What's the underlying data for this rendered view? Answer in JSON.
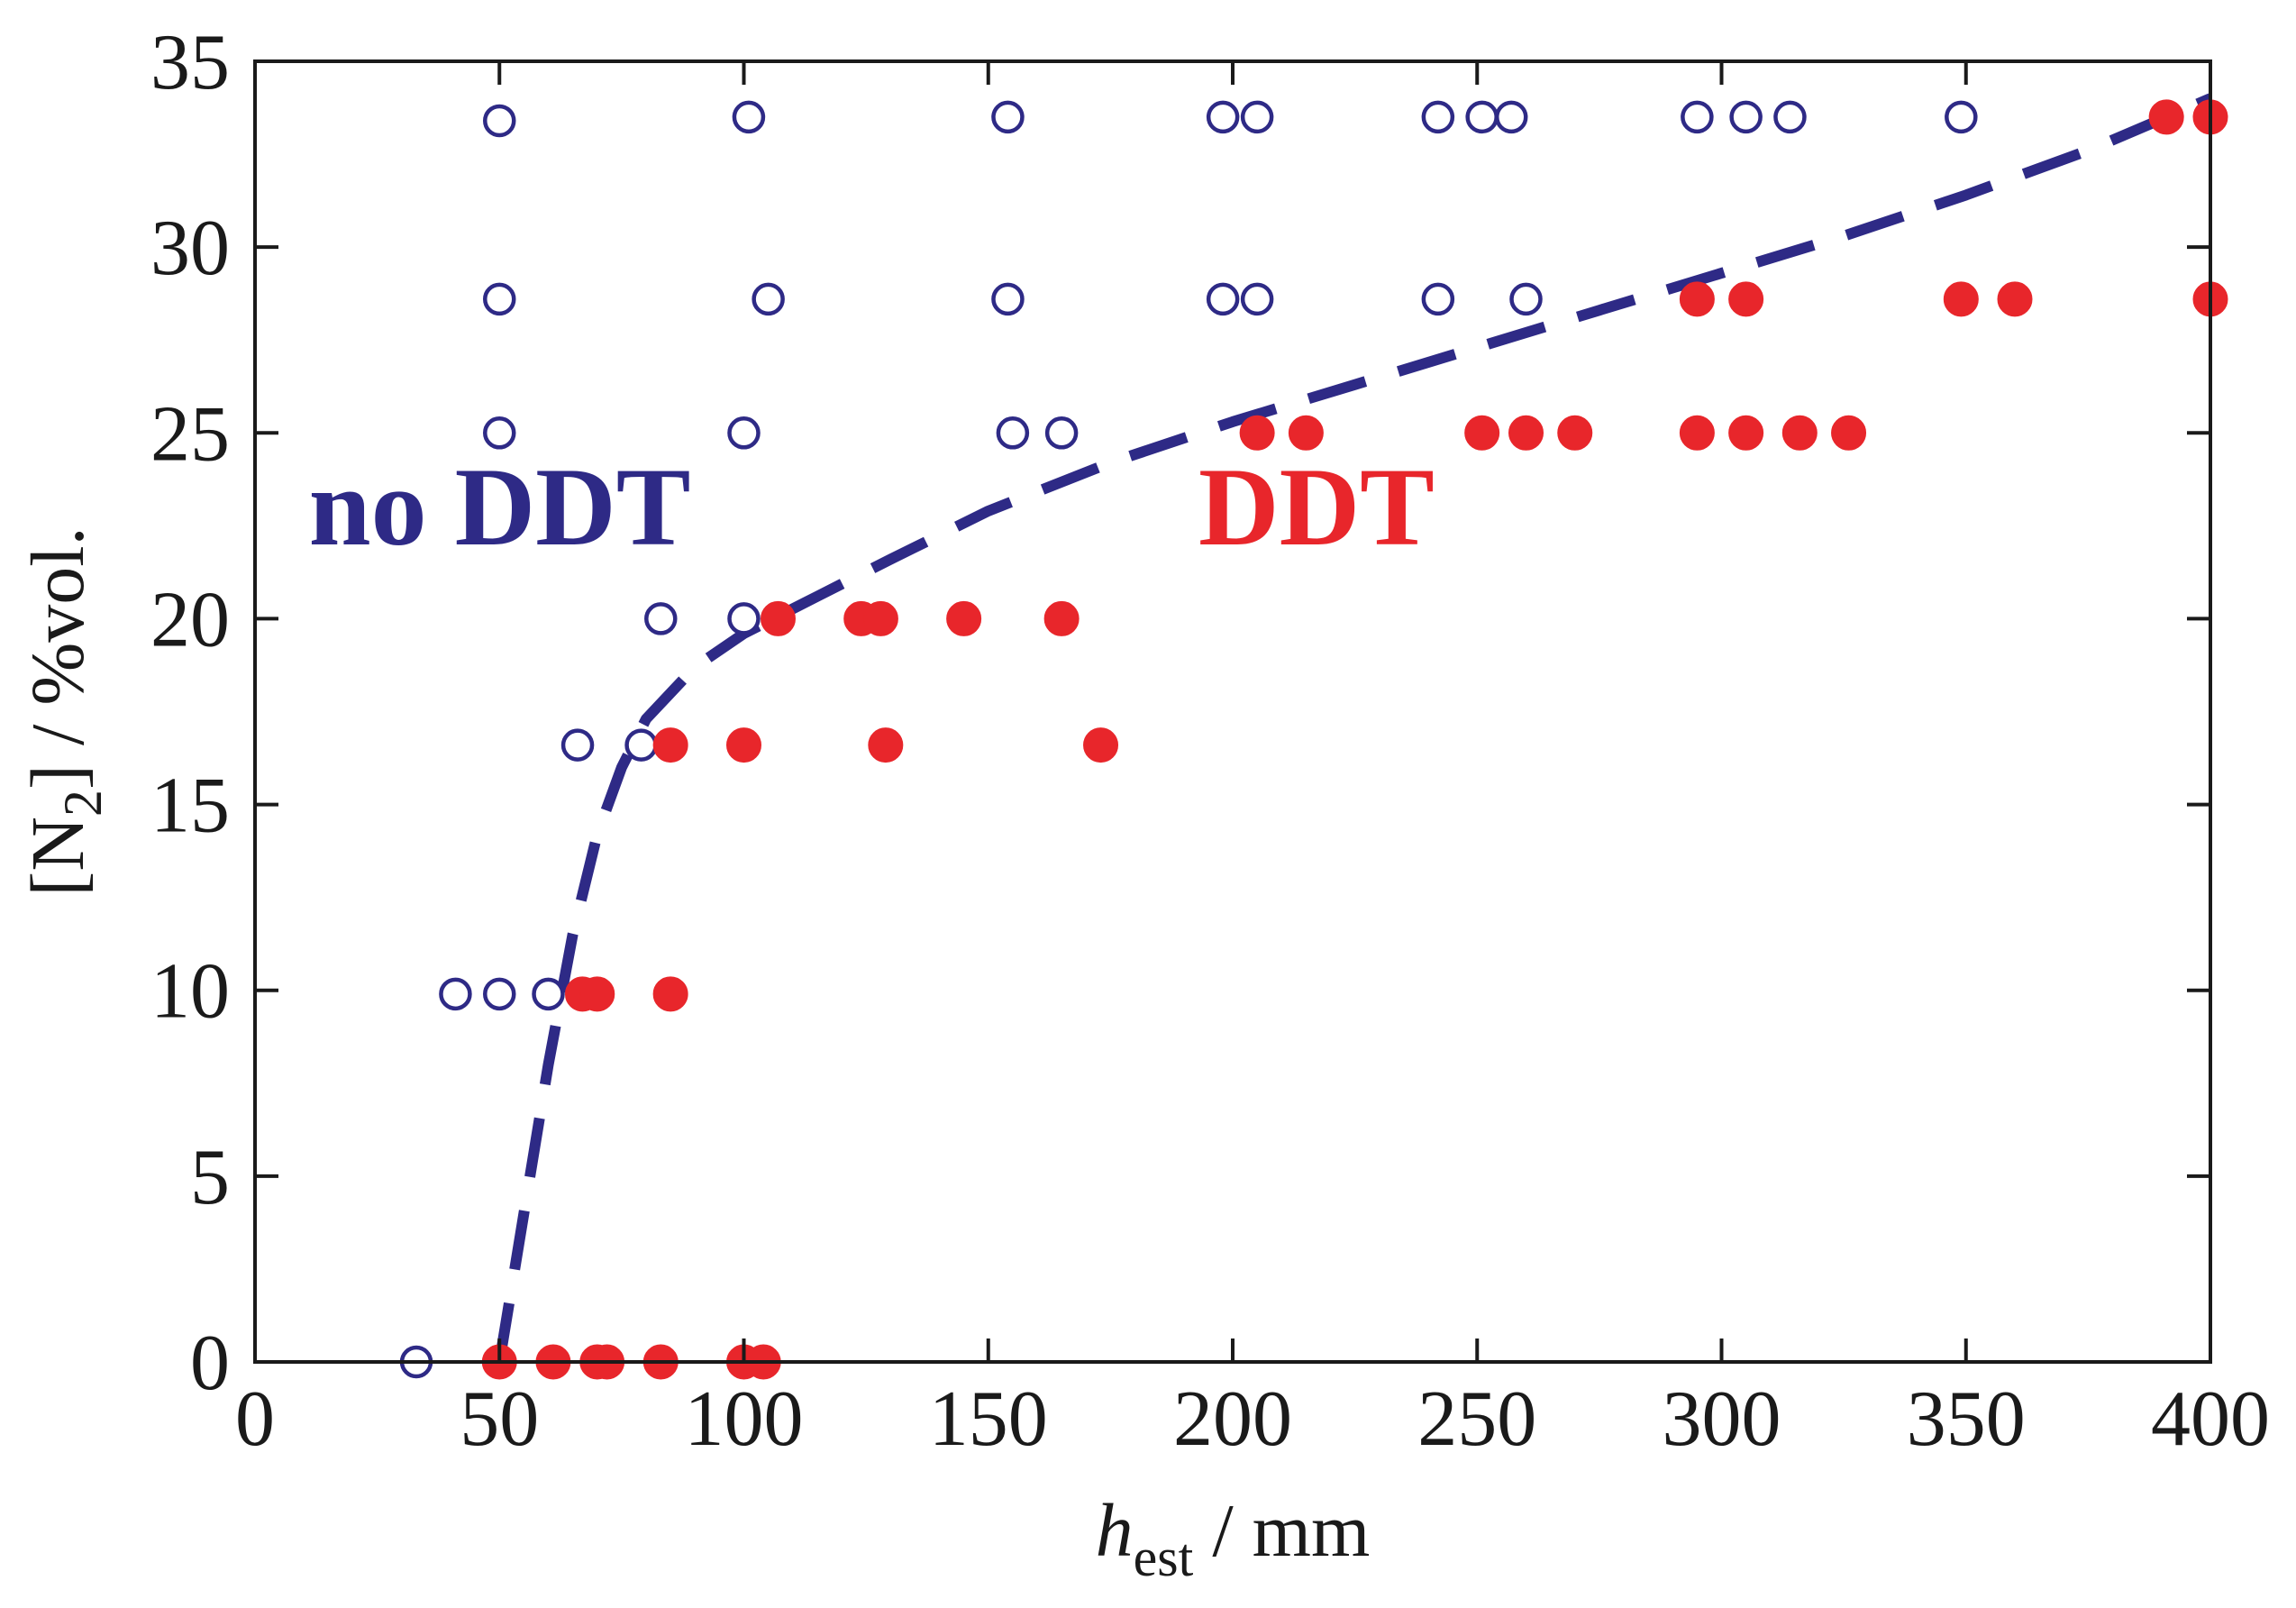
{
  "chart_data": {
    "type": "scatter",
    "title": "",
    "xlabel": {
      "main": "h",
      "sub": "est",
      "suffix": " / mm"
    },
    "ylabel": {
      "prefix": "[N",
      "sub": "2",
      "suffix": "] / %vol."
    },
    "xlim": [
      0,
      400
    ],
    "ylim": [
      0,
      35
    ],
    "xticks": [
      0,
      50,
      100,
      150,
      200,
      250,
      300,
      350,
      400
    ],
    "yticks": [
      0,
      5,
      10,
      15,
      20,
      25,
      30,
      35
    ],
    "colors": {
      "no_ddt": "#2e2a86",
      "ddt": "#e8262b",
      "axis": "#1a1a1a"
    },
    "annotations": [
      {
        "text": "no DDT",
        "series": "no_ddt",
        "x": 11,
        "y": 22
      },
      {
        "text": "DDT",
        "series": "ddt",
        "x": 193,
        "y": 22
      }
    ],
    "series": [
      {
        "name": "no DDT",
        "key": "no_ddt",
        "marker": "open-circle",
        "points": [
          [
            50,
            33.4
          ],
          [
            101,
            33.5
          ],
          [
            154,
            33.5
          ],
          [
            198,
            33.5
          ],
          [
            205,
            33.5
          ],
          [
            242,
            33.5
          ],
          [
            251,
            33.5
          ],
          [
            257,
            33.5
          ],
          [
            295,
            33.5
          ],
          [
            305,
            33.5
          ],
          [
            314,
            33.5
          ],
          [
            349,
            33.5
          ],
          [
            50,
            28.6
          ],
          [
            105,
            28.6
          ],
          [
            154,
            28.6
          ],
          [
            198,
            28.6
          ],
          [
            205,
            28.6
          ],
          [
            242,
            28.6
          ],
          [
            260,
            28.6
          ],
          [
            50,
            25
          ],
          [
            100,
            25
          ],
          [
            155,
            25
          ],
          [
            165,
            25
          ],
          [
            83,
            20
          ],
          [
            100,
            20
          ],
          [
            66,
            16.6
          ],
          [
            79,
            16.6
          ],
          [
            41,
            9.9
          ],
          [
            50,
            9.9
          ],
          [
            60,
            9.9
          ],
          [
            33,
            0
          ]
        ]
      },
      {
        "name": "DDT",
        "key": "ddt",
        "marker": "filled-circle",
        "points": [
          [
            391,
            33.5
          ],
          [
            400,
            33.5
          ],
          [
            295,
            28.6
          ],
          [
            305,
            28.6
          ],
          [
            349,
            28.6
          ],
          [
            360,
            28.6
          ],
          [
            400,
            28.6
          ],
          [
            205,
            25
          ],
          [
            215,
            25
          ],
          [
            251,
            25
          ],
          [
            260,
            25
          ],
          [
            270,
            25
          ],
          [
            295,
            25
          ],
          [
            305,
            25
          ],
          [
            316,
            25
          ],
          [
            326,
            25
          ],
          [
            107,
            20
          ],
          [
            124,
            20
          ],
          [
            128,
            20
          ],
          [
            145,
            20
          ],
          [
            165,
            20
          ],
          [
            85,
            16.6
          ],
          [
            100,
            16.6
          ],
          [
            129,
            16.6
          ],
          [
            173,
            16.6
          ],
          [
            67,
            9.9
          ],
          [
            70,
            9.9
          ],
          [
            85,
            9.9
          ],
          [
            50,
            0
          ],
          [
            61,
            0
          ],
          [
            70,
            0
          ],
          [
            72,
            0
          ],
          [
            83,
            0
          ],
          [
            100,
            0
          ],
          [
            104,
            0
          ]
        ]
      },
      {
        "name": "boundary",
        "key": "boundary",
        "marker": "dashed-line",
        "points": [
          [
            50,
            0
          ],
          [
            55,
            4
          ],
          [
            60,
            8
          ],
          [
            65,
            11.5
          ],
          [
            70,
            14.2
          ],
          [
            75,
            16
          ],
          [
            80,
            17.3
          ],
          [
            90,
            18.7
          ],
          [
            100,
            19.6
          ],
          [
            115,
            20.6
          ],
          [
            130,
            21.6
          ],
          [
            150,
            22.9
          ],
          [
            175,
            24.2
          ],
          [
            200,
            25.3
          ],
          [
            225,
            26.3
          ],
          [
            250,
            27.3
          ],
          [
            275,
            28.3
          ],
          [
            300,
            29.3
          ],
          [
            325,
            30.3
          ],
          [
            350,
            31.4
          ],
          [
            375,
            32.6
          ],
          [
            400,
            34
          ]
        ]
      }
    ]
  }
}
